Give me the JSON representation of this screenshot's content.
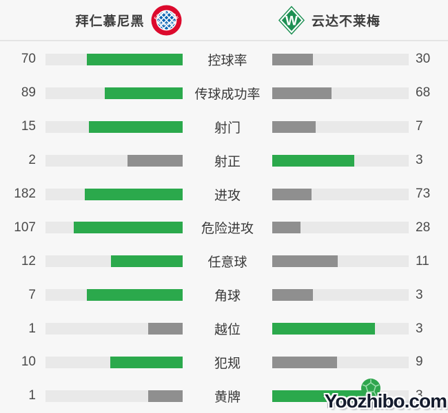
{
  "header": {
    "home": {
      "name": "拜仁慕尼黑",
      "crest_top": "FC BAYERN",
      "crest_bottom": "MÜNCHEN"
    },
    "away": {
      "name": "云达不莱梅",
      "crest_letter": "W"
    }
  },
  "stats": [
    {
      "label": "控球率",
      "home": 70,
      "away": 30
    },
    {
      "label": "传球成功率",
      "home": 89,
      "away": 68
    },
    {
      "label": "射门",
      "home": 15,
      "away": 7
    },
    {
      "label": "射正",
      "home": 2,
      "away": 3
    },
    {
      "label": "进攻",
      "home": 182,
      "away": 73
    },
    {
      "label": "危险进攻",
      "home": 107,
      "away": 28
    },
    {
      "label": "任意球",
      "home": 12,
      "away": 11
    },
    {
      "label": "角球",
      "home": 7,
      "away": 3
    },
    {
      "label": "越位",
      "home": 1,
      "away": 3
    },
    {
      "label": "犯规",
      "home": 10,
      "away": 9
    },
    {
      "label": "黄牌",
      "home": 1,
      "away": 3
    }
  ],
  "colors": {
    "win": "#2ba94c",
    "lose": "#8f8f8f",
    "track": "#e9e9e9",
    "bayern_red": "#dc0a2d",
    "bayern_blue": "#0a63b2",
    "werder_green": "#1d9053"
  },
  "watermark": {
    "text": "Yoozhibo.com"
  },
  "chart_data": {
    "type": "bar",
    "orientation": "horizontal-paired",
    "title": "拜仁慕尼黑 vs 云达不莱梅",
    "categories": [
      "控球率",
      "传球成功率",
      "射门",
      "射正",
      "进攻",
      "危险进攻",
      "任意球",
      "角球",
      "越位",
      "犯规",
      "黄牌"
    ],
    "series": [
      {
        "name": "拜仁慕尼黑",
        "values": [
          70,
          89,
          15,
          2,
          182,
          107,
          12,
          7,
          1,
          10,
          1
        ]
      },
      {
        "name": "云达不莱梅",
        "values": [
          30,
          68,
          7,
          3,
          73,
          28,
          11,
          3,
          3,
          9,
          3
        ]
      }
    ],
    "legend_position": "top",
    "notes": "Bar fill fraction = value / (home + away); larger value colored green, smaller gray; value labels at outer edges"
  }
}
